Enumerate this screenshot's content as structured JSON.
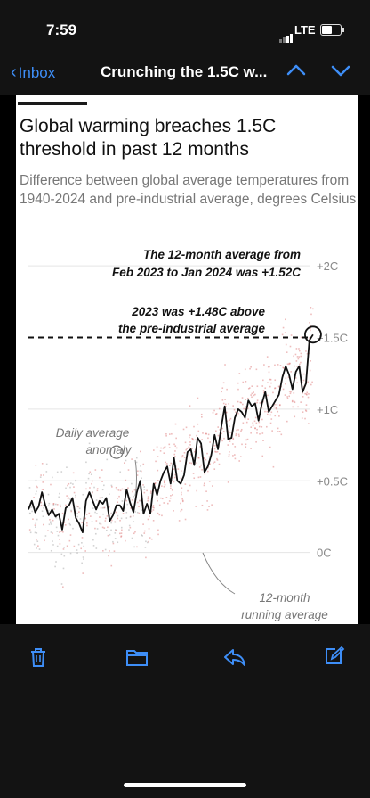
{
  "status": {
    "time": "7:59",
    "network": "LTE"
  },
  "nav": {
    "back_label": "Inbox",
    "title": "Crunching the 1.5C w...",
    "up_icon": "chevron-up-icon",
    "down_icon": "chevron-down-icon"
  },
  "article": {
    "title": "Global warming breaches 1.5C threshold in past 12 months",
    "subtitle": "Difference between global average temperatures from 1940-2024 and pre-industrial average, degrees Celsius"
  },
  "chart_data": {
    "type": "line",
    "title": "Global warming breaches 1.5C threshold in past 12 months",
    "subtitle": "Difference between global average temperatures from 1940-2024 and pre-industrial average, degrees Celsius",
    "xlim": [
      1940,
      2024.1
    ],
    "ylim": [
      -0.5,
      2.2
    ],
    "y_ticks": [
      {
        "value": 2.0,
        "label": "+2C"
      },
      {
        "value": 1.5,
        "label": "+1.5C"
      },
      {
        "value": 1.0,
        "label": "+1C"
      },
      {
        "value": 0.5,
        "label": "+0.5C"
      },
      {
        "value": 0.0,
        "label": "0C"
      }
    ],
    "threshold": 1.5,
    "series": [
      {
        "name": "12-month running average",
        "x": [
          1940,
          1941,
          1942,
          1943,
          1944,
          1945,
          1946,
          1947,
          1948,
          1949,
          1950,
          1951,
          1952,
          1953,
          1954,
          1955,
          1956,
          1957,
          1958,
          1959,
          1960,
          1961,
          1962,
          1963,
          1964,
          1965,
          1966,
          1967,
          1968,
          1969,
          1970,
          1971,
          1972,
          1973,
          1974,
          1975,
          1976,
          1977,
          1978,
          1979,
          1980,
          1981,
          1982,
          1983,
          1984,
          1985,
          1986,
          1987,
          1988,
          1989,
          1990,
          1991,
          1992,
          1993,
          1994,
          1995,
          1996,
          1997,
          1998,
          1999,
          2000,
          2001,
          2002,
          2003,
          2004,
          2005,
          2006,
          2007,
          2008,
          2009,
          2010,
          2011,
          2012,
          2013,
          2014,
          2015,
          2016,
          2017,
          2018,
          2019,
          2020,
          2021,
          2022,
          2023,
          2024.08
        ],
        "values": [
          0.3,
          0.36,
          0.28,
          0.32,
          0.42,
          0.33,
          0.26,
          0.3,
          0.25,
          0.27,
          0.16,
          0.31,
          0.33,
          0.38,
          0.24,
          0.2,
          0.14,
          0.36,
          0.42,
          0.36,
          0.3,
          0.36,
          0.34,
          0.38,
          0.22,
          0.26,
          0.33,
          0.33,
          0.29,
          0.44,
          0.35,
          0.28,
          0.42,
          0.5,
          0.27,
          0.34,
          0.27,
          0.48,
          0.4,
          0.5,
          0.56,
          0.6,
          0.48,
          0.66,
          0.5,
          0.48,
          0.54,
          0.7,
          0.72,
          0.61,
          0.8,
          0.76,
          0.56,
          0.6,
          0.68,
          0.82,
          0.72,
          0.88,
          1.02,
          0.79,
          0.8,
          0.94,
          1.0,
          0.98,
          0.94,
          1.06,
          1.02,
          1.04,
          0.92,
          1.04,
          1.12,
          0.98,
          1.02,
          1.06,
          1.1,
          1.22,
          1.3,
          1.24,
          1.14,
          1.26,
          1.3,
          1.12,
          1.18,
          1.48,
          1.52
        ]
      }
    ],
    "annotations": [
      {
        "text": "The 12-month average from Feb 2023 to Jan 2024 was +1.52C",
        "x": 2024.08,
        "y": 1.52
      },
      {
        "text": "2023 was +1.48C above the pre-industrial average",
        "x": 2023,
        "y": 1.48
      },
      {
        "text": "Daily average anomaly",
        "x": 1966,
        "y": 0.7
      },
      {
        "text": "12-month running average",
        "x": 1995,
        "y": 0.55
      }
    ],
    "colors": {
      "line": "#111111",
      "daily": "#d96a6a",
      "daily_early": "#9b9b9b",
      "grid": "#e5e5e5"
    }
  },
  "toolbar": {
    "items": [
      "trash-icon",
      "folder-icon",
      "reply-icon",
      "compose-icon"
    ]
  }
}
